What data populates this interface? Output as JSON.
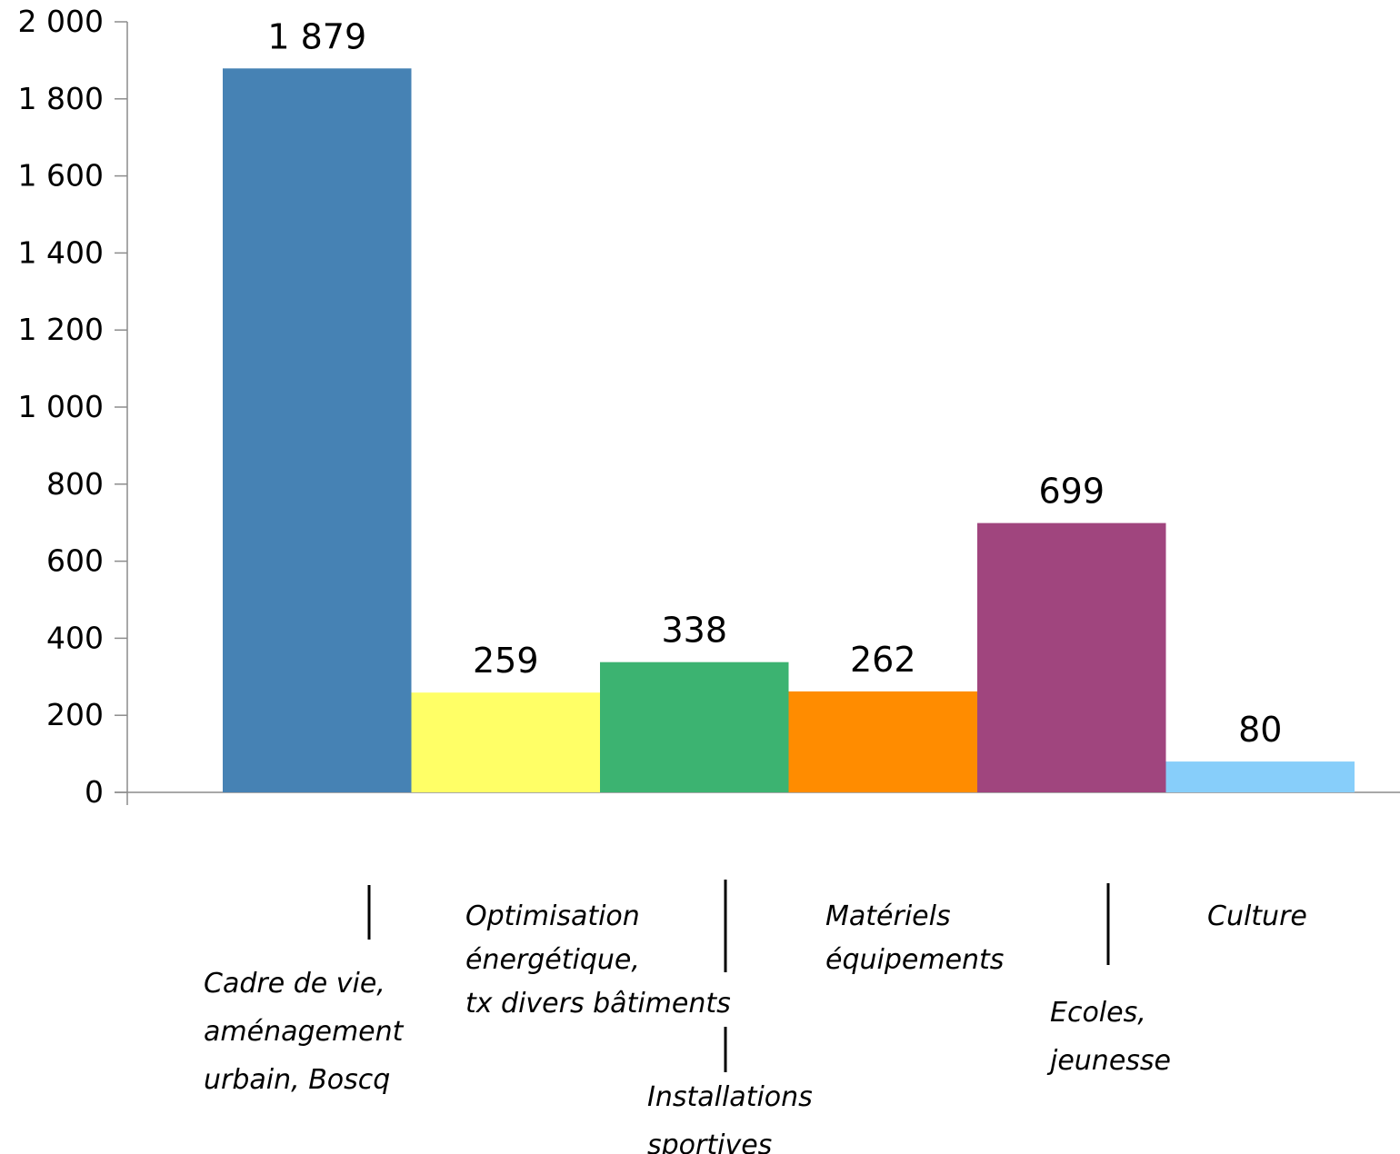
{
  "chart_data": {
    "type": "bar",
    "categories": [
      [
        "Cadre de vie,",
        "aménagement",
        "urbain, Boscq"
      ],
      [
        "Optimisation",
        "énergétique,",
        "tx divers bâtiments"
      ],
      [
        "Installations",
        "sportives"
      ],
      [
        "Matériels",
        "équipements"
      ],
      [
        "Ecoles,",
        "jeunesse"
      ],
      [
        "Culture"
      ]
    ],
    "values": [
      1879,
      259,
      338,
      262,
      699,
      80
    ],
    "value_labels": [
      "1 879",
      "259",
      "338",
      "262",
      "699",
      "80"
    ],
    "colors": [
      "#4682B4",
      "#FFFF66",
      "#3CB371",
      "#FF8C00",
      "#A0457E",
      "#87CEFA"
    ],
    "ylim": [
      0,
      2000
    ],
    "yticks": [
      0,
      200,
      400,
      600,
      800,
      1000,
      1200,
      1400,
      1600,
      1800,
      2000
    ],
    "ytick_labels": [
      "0",
      "200",
      "400",
      "600",
      "800",
      "1 000",
      "1 200",
      "1 400",
      "1 600",
      "1 800",
      "2 000"
    ],
    "title": "",
    "xlabel": "",
    "ylabel": "",
    "grid": false,
    "legend": false
  }
}
